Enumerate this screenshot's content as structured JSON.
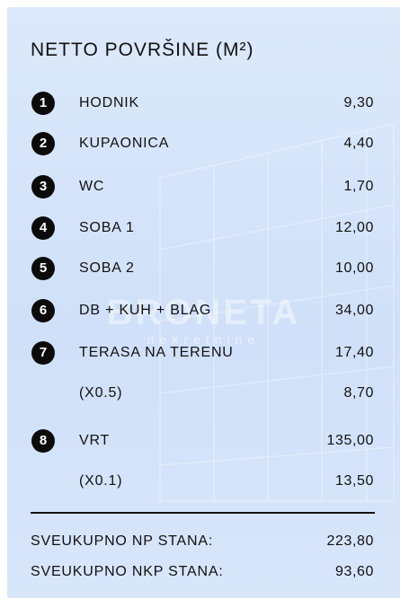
{
  "title": "NETTO POVRŠINE (M²)",
  "watermark": {
    "brand": "BRONETA",
    "sub": "nekretnine"
  },
  "rows": [
    {
      "number": 1,
      "label": "HODNIK",
      "value": "9,30"
    },
    {
      "number": 2,
      "label": "KUPAONICA",
      "value": "4,40"
    },
    {
      "number": 3,
      "label": "WC",
      "value": "1,70"
    },
    {
      "number": 4,
      "label": "SOBA 1",
      "value": "12,00"
    },
    {
      "number": 5,
      "label": "SOBA 2",
      "value": "10,00"
    },
    {
      "number": 6,
      "label": "DB + KUH + BLAG",
      "value": "34,00"
    },
    {
      "number": 7,
      "label": "TERASA NA TERENU",
      "value": "17,40"
    },
    {
      "label": "(X0.5)",
      "value": "8,70"
    },
    {
      "number": 8,
      "label": "VRT",
      "value": "135,00"
    },
    {
      "label": "(X0.1)",
      "value": "13,50"
    }
  ],
  "totals": [
    {
      "label": "SVEUKUPNO NP STANA:",
      "value": "223,80"
    },
    {
      "label": "SVEUKUPNO NKP STANA:",
      "value": "93,60"
    }
  ]
}
